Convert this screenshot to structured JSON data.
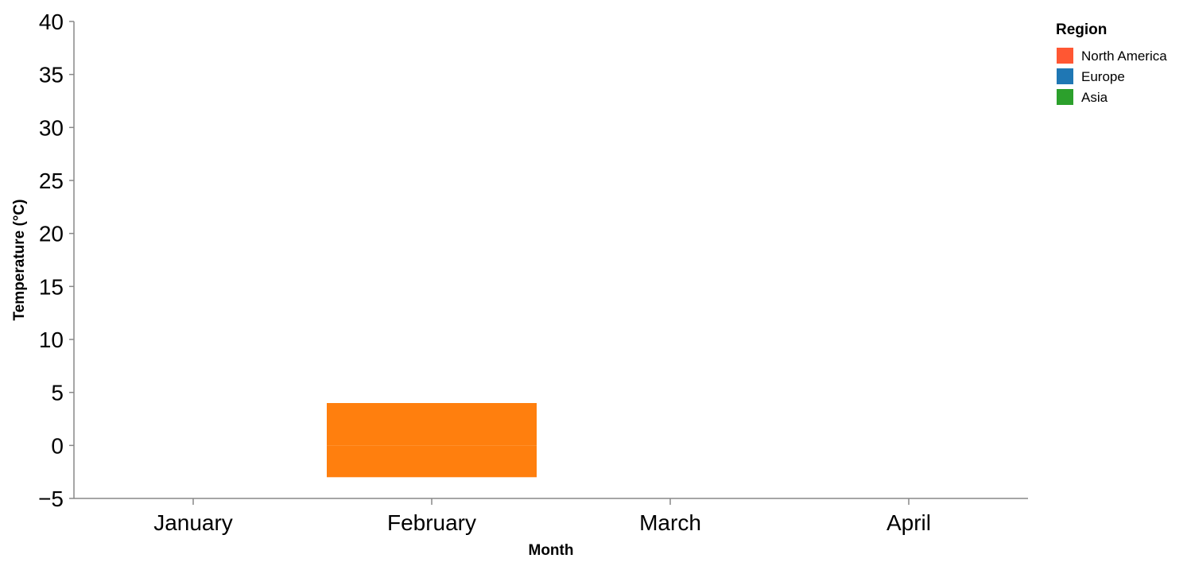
{
  "chart_data": {
    "type": "bar",
    "xlabel": "Month",
    "ylabel": "Temperature (°C)",
    "ylim": [
      -5,
      40
    ],
    "yticks": [
      -5,
      0,
      5,
      10,
      15,
      20,
      25,
      30,
      35,
      40
    ],
    "yticks_text": [
      "−5",
      "0",
      "5",
      "10",
      "15",
      "20",
      "25",
      "30",
      "35",
      "40"
    ],
    "categories": [
      "January",
      "February",
      "March",
      "April"
    ],
    "legend": {
      "title": "Region",
      "placement": "top-right",
      "entries": [
        {
          "name": "North America",
          "color": "#ff5733"
        },
        {
          "name": "Europe",
          "color": "#1f77b4"
        },
        {
          "name": "Asia",
          "color": "#2ca02c"
        }
      ]
    },
    "bars": [
      {
        "category": "February",
        "from": -3,
        "to": 0,
        "color": "#ff7f0e"
      },
      {
        "category": "February",
        "from": 0,
        "to": 4,
        "color": "#ff7f0e"
      }
    ],
    "grid": false
  }
}
